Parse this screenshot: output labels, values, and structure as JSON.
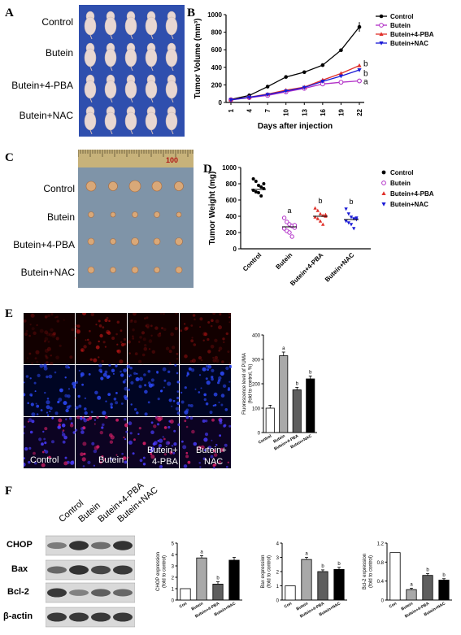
{
  "panels": {
    "A": "A",
    "B": "B",
    "C": "C",
    "D": "D",
    "E": "E",
    "F": "F"
  },
  "groups": [
    "Control",
    "Butein",
    "Butein+4-PBA",
    "Butein+NAC"
  ],
  "colors": {
    "control": "#000000",
    "butein": "#b12fc7",
    "pba": "#e0302a",
    "nac": "#1a1ad6"
  },
  "panelC": {
    "ruler_mark": "100"
  },
  "panelE": {
    "image_labels": [
      "Control",
      "Butein",
      "Butein+\n4-PBA",
      "Butein+\nNAC"
    ],
    "label_control": "Control",
    "label_butein": "Butein",
    "label_pba_1": "Butein+",
    "label_pba_2": "4-PBA",
    "label_nac_1": "Butein+",
    "label_nac_2": "NAC"
  },
  "panelF": {
    "lanes": [
      "Control",
      "Butein",
      "Butein+4-PBA",
      "Butein+NAC"
    ],
    "blots": [
      "CHOP",
      "Bax",
      "Bcl-2",
      "β-actin"
    ]
  },
  "chart_data": [
    {
      "id": "B",
      "type": "line",
      "xlabel": "Days after injection",
      "ylabel": "Tumor Volume (mm³)",
      "x": [
        1,
        4,
        7,
        10,
        13,
        16,
        19,
        22
      ],
      "xticks": [
        "1",
        "4",
        "7",
        "10",
        "13",
        "16",
        "19",
        "22"
      ],
      "ylim": [
        0,
        1000
      ],
      "yticks": [
        0,
        200,
        400,
        600,
        800,
        1000
      ],
      "series": [
        {
          "name": "Control",
          "values": [
            35,
            80,
            180,
            290,
            345,
            425,
            595,
            860
          ]
        },
        {
          "name": "Butein",
          "values": [
            30,
            55,
            80,
            120,
            160,
            210,
            230,
            245
          ]
        },
        {
          "name": "Butein+4-PBA",
          "values": [
            32,
            60,
            95,
            140,
            175,
            255,
            330,
            420
          ]
        },
        {
          "name": "Butein+NAC",
          "values": [
            30,
            58,
            90,
            130,
            170,
            240,
            300,
            370
          ]
        }
      ],
      "annotations": [
        {
          "text": "b",
          "series": "Butein+4-PBA"
        },
        {
          "text": "b",
          "series": "Butein+NAC"
        },
        {
          "text": "a",
          "series": "Butein"
        }
      ]
    },
    {
      "id": "D",
      "type": "scatter",
      "ylabel": "Tumor Weight (mg)",
      "ylim": [
        0,
        1000
      ],
      "yticks": [
        0,
        200,
        400,
        600,
        800,
        1000
      ],
      "categories": [
        "Control",
        "Butein",
        "Butein+4-PBA",
        "Butein+NAC"
      ],
      "series": [
        {
          "name": "Control",
          "mean": 730,
          "points": [
            860,
            830,
            780,
            760,
            740,
            720,
            700,
            690,
            650,
            800
          ]
        },
        {
          "name": "Butein",
          "mean": 270,
          "points": [
            380,
            330,
            300,
            280,
            260,
            250,
            220,
            200,
            150,
            290
          ]
        },
        {
          "name": "Butein+4-PBA",
          "mean": 400,
          "points": [
            500,
            470,
            430,
            410,
            400,
            390,
            370,
            340,
            300,
            420
          ]
        },
        {
          "name": "Butein+NAC",
          "mean": 360,
          "points": [
            490,
            430,
            390,
            370,
            360,
            340,
            320,
            300,
            250,
            380
          ]
        }
      ],
      "annotations": [
        "",
        "a",
        "b",
        "b"
      ]
    },
    {
      "id": "E",
      "type": "bar",
      "ylabel": "Fluorescence level of PUMA\n(fold to control, %)",
      "ylabel_lines": [
        "Fluorescence level of PUMA",
        "(fold to control, %)"
      ],
      "ylim": [
        0,
        400
      ],
      "yticks": [
        0,
        100,
        200,
        300,
        400
      ],
      "categories": [
        "Control",
        "Butein",
        "Butein+4-PBA",
        "Butein+NAC"
      ],
      "values": [
        100,
        315,
        175,
        220
      ],
      "errors": [
        12,
        15,
        10,
        12
      ],
      "annotations": [
        "",
        "a",
        "b",
        "b"
      ]
    },
    {
      "id": "F1",
      "type": "bar",
      "ylabel": "CHOP expression\n(fold to control)",
      "ylabel_lines": [
        "CHOP expression",
        "(fold to control)"
      ],
      "ylim": [
        0,
        5
      ],
      "yticks": [
        0,
        1,
        2,
        3,
        4,
        5
      ],
      "categories": [
        "Con",
        "Butein",
        "Butein+4-PBA",
        "Butein+NAC"
      ],
      "values": [
        1,
        3.7,
        1.4,
        3.5
      ],
      "errors": [
        0,
        0.2,
        0.2,
        0.25
      ],
      "annotations": [
        "",
        "a",
        "b",
        ""
      ]
    },
    {
      "id": "F2",
      "type": "bar",
      "ylabel": "Bax expression\n(fold to control)",
      "ylabel_lines": [
        "Bax expression",
        "(fold to control)"
      ],
      "ylim": [
        0,
        4
      ],
      "yticks": [
        0,
        1,
        2,
        3,
        4
      ],
      "categories": [
        "Con",
        "Butein",
        "Butein+4-PBA",
        "Butein+NAC"
      ],
      "values": [
        1,
        2.85,
        2.0,
        2.15
      ],
      "errors": [
        0,
        0.15,
        0.12,
        0.15
      ],
      "annotations": [
        "",
        "a",
        "b",
        "b"
      ]
    },
    {
      "id": "F3",
      "type": "bar",
      "ylabel": "Bcl-2 expression\n(fold to control)",
      "ylabel_lines": [
        "Bcl-2 expression",
        "(fold to control)"
      ],
      "ylim": [
        0,
        1.2
      ],
      "yticks": [
        0,
        0.4,
        0.8,
        1.2
      ],
      "ytick_labels": [
        "0",
        "0.4",
        "0.8",
        "1.2"
      ],
      "categories": [
        "Con",
        "Butein",
        "Butein+4-PBA",
        "Butein+NAC"
      ],
      "values": [
        1.0,
        0.22,
        0.52,
        0.42
      ],
      "errors": [
        0,
        0.03,
        0.04,
        0.03
      ],
      "annotations": [
        "",
        "a",
        "b",
        "b"
      ]
    }
  ]
}
